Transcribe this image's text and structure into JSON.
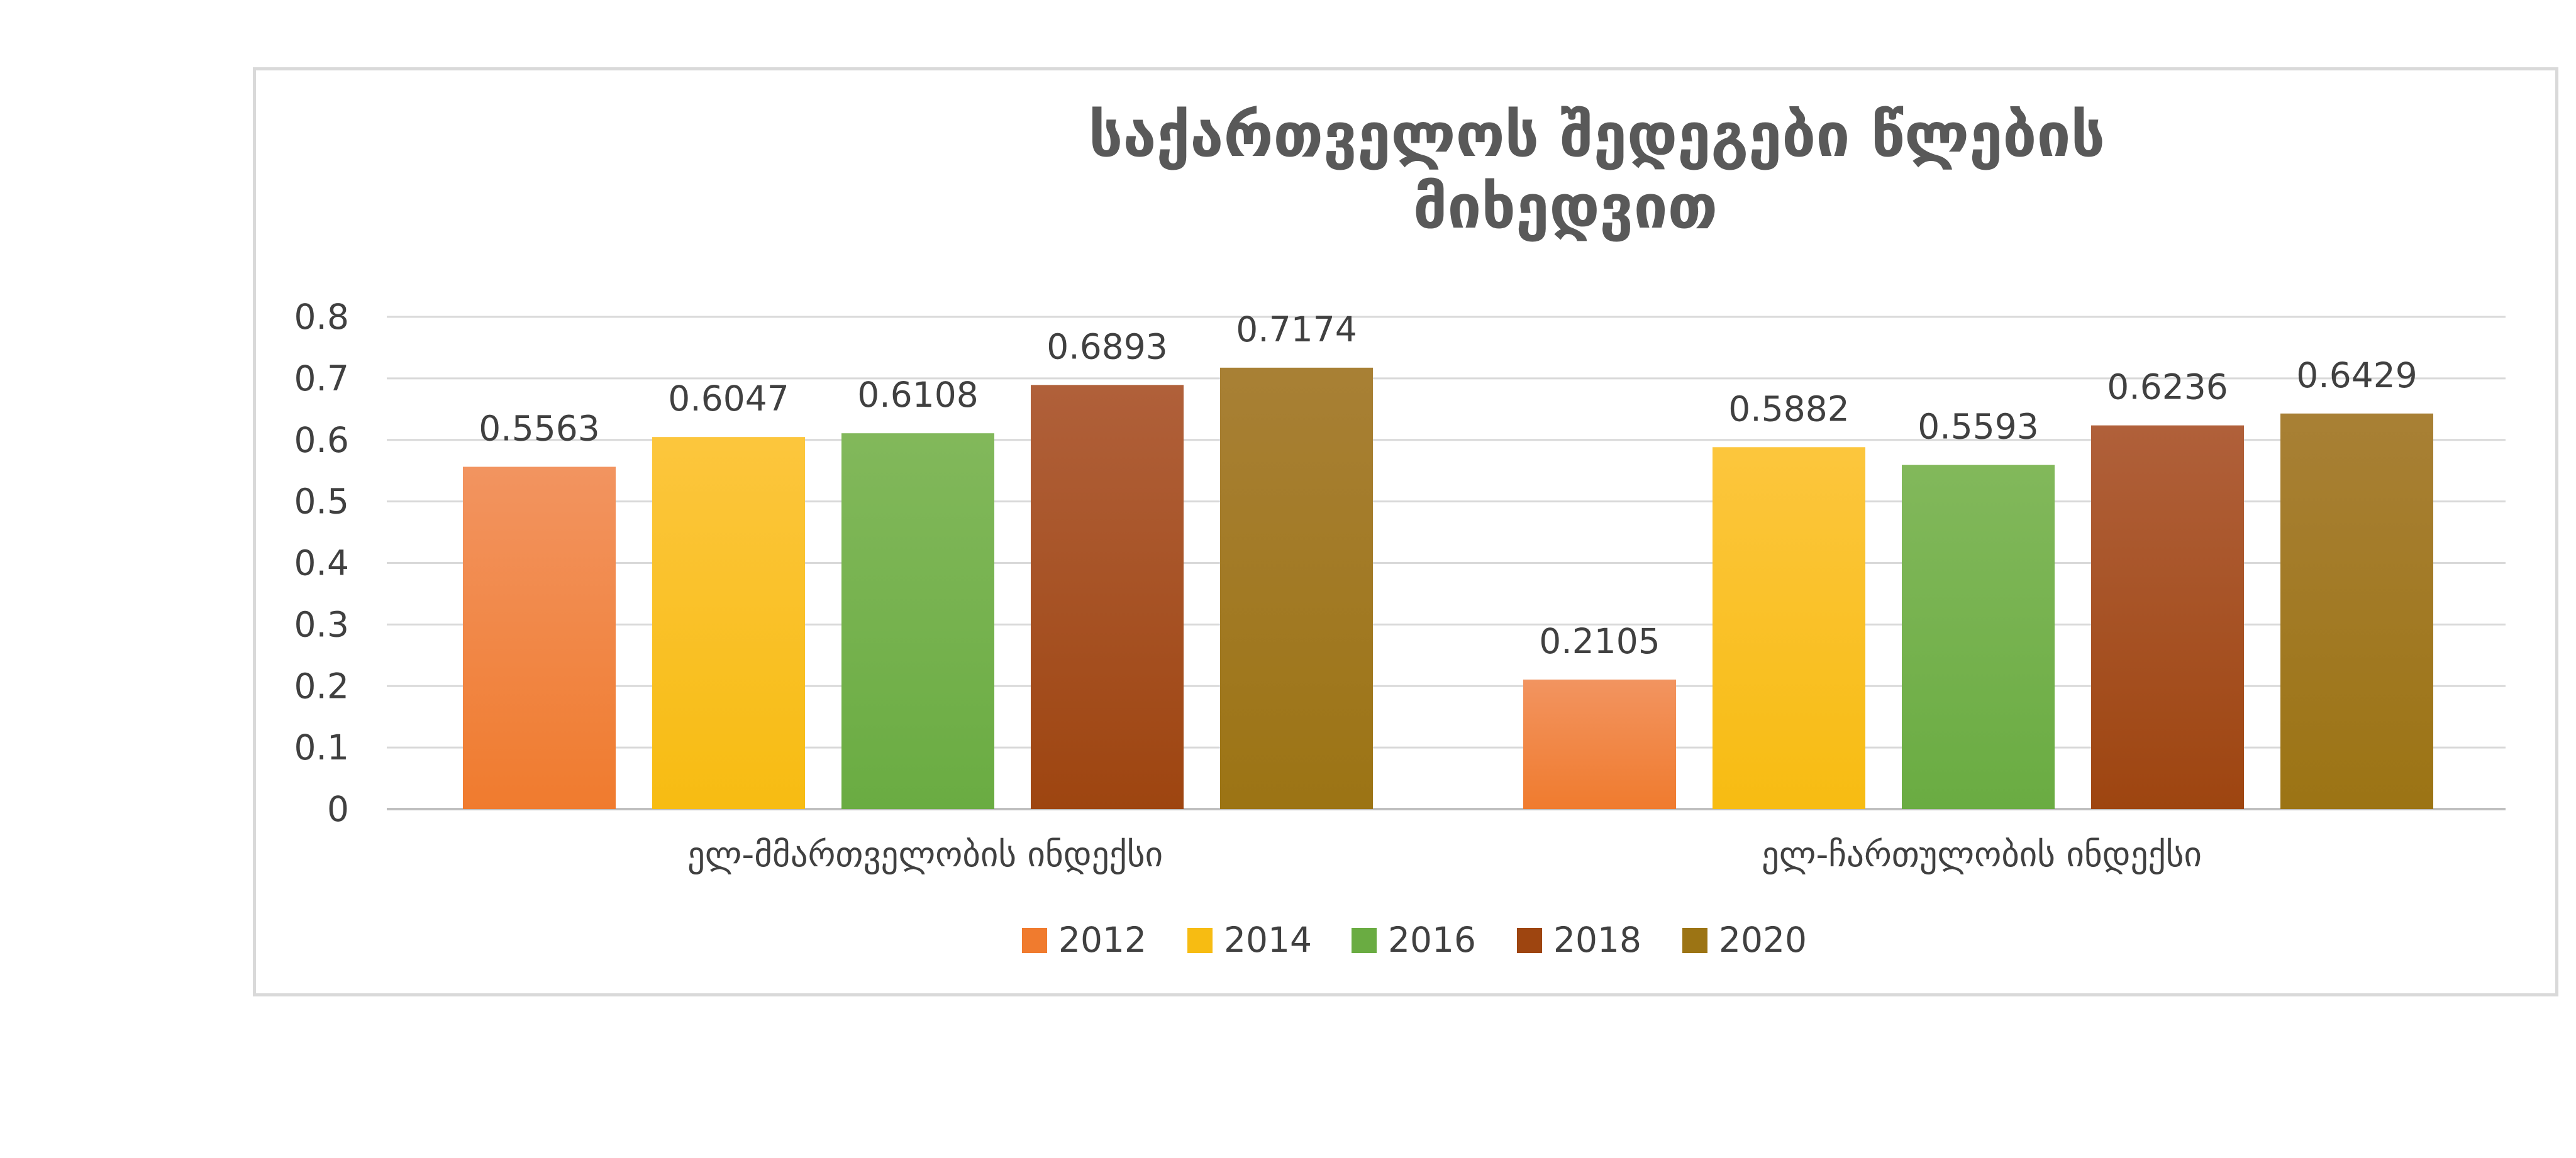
{
  "chart_data": {
    "type": "bar",
    "title_lines": [
      "საქართველოს შედეგები წლების",
      "მიხედვით"
    ],
    "categories": [
      "ელ-მმართველობის ინდექსი",
      "ელ-ჩართულობის ინდექსი"
    ],
    "series": [
      {
        "name": "2012",
        "values": [
          0.5563,
          0.2105
        ],
        "color": "#f07b2e",
        "color_top": "#f29460"
      },
      {
        "name": "2014",
        "values": [
          0.6047,
          0.5882
        ],
        "color": "#f7bc12",
        "color_top": "#fcc63d"
      },
      {
        "name": "2016",
        "values": [
          0.6108,
          0.5593
        ],
        "color": "#6aac42",
        "color_top": "#82b85b"
      },
      {
        "name": "2018",
        "values": [
          0.6893,
          0.6236
        ],
        "color": "#9e4510",
        "color_top": "#b0603a"
      },
      {
        "name": "2020",
        "values": [
          0.7174,
          0.6429
        ],
        "color": "#9c7414",
        "color_top": "#a88035"
      }
    ],
    "data_labels": [
      [
        "0.5563",
        "0.2105"
      ],
      [
        "0.6047",
        "0.5882"
      ],
      [
        "0.6108",
        "0.5593"
      ],
      [
        "0.6893",
        "0.6236"
      ],
      [
        "0.7174",
        "0.6429"
      ]
    ],
    "y_ticks": [
      "0",
      "0.1",
      "0.2",
      "0.3",
      "0.4",
      "0.5",
      "0.6",
      "0.7",
      "0.8"
    ],
    "ylim": [
      0,
      0.8
    ],
    "grid": true,
    "legend_position": "bottom"
  }
}
